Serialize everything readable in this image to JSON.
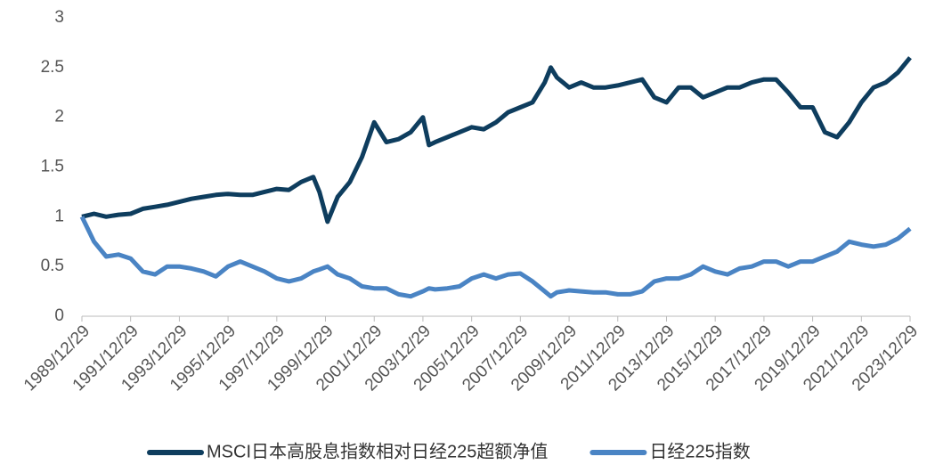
{
  "chart_data": {
    "type": "line",
    "x": [
      "1989/12/29",
      "1990/06/29",
      "1990/12/29",
      "1991/06/29",
      "1991/12/29",
      "1992/06/29",
      "1992/12/29",
      "1993/06/29",
      "1993/12/29",
      "1994/06/29",
      "1994/12/29",
      "1995/06/29",
      "1995/12/29",
      "1996/06/29",
      "1996/12/29",
      "1997/06/29",
      "1997/12/29",
      "1998/06/29",
      "1998/12/29",
      "1999/06/29",
      "1999/09/29",
      "2000/01/29",
      "2000/06/29",
      "2000/12/29",
      "2001/06/29",
      "2001/12/29",
      "2002/06/29",
      "2002/12/29",
      "2003/06/29",
      "2003/12/29",
      "2004/03/29",
      "2004/06/29",
      "2004/12/29",
      "2005/06/29",
      "2005/12/29",
      "2006/06/29",
      "2006/12/29",
      "2007/06/29",
      "2007/12/29",
      "2008/06/29",
      "2008/12/29",
      "2009/03/29",
      "2009/06/29",
      "2009/12/29",
      "2010/06/29",
      "2010/12/29",
      "2011/06/29",
      "2011/12/29",
      "2012/06/29",
      "2012/12/29",
      "2013/06/29",
      "2013/12/29",
      "2014/06/29",
      "2014/12/29",
      "2015/06/29",
      "2015/12/29",
      "2016/06/29",
      "2016/12/29",
      "2017/06/29",
      "2017/12/29",
      "2018/06/29",
      "2018/12/29",
      "2019/06/29",
      "2019/12/29",
      "2020/06/29",
      "2020/12/29",
      "2021/06/29",
      "2021/12/29",
      "2022/06/29",
      "2022/12/29",
      "2023/06/29",
      "2023/12/29"
    ],
    "series": [
      {
        "name": "MSCI日本高股息指数相对日经225超额净值",
        "color": "#0e3d5e",
        "values": [
          1.0,
          1.03,
          1.0,
          1.02,
          1.03,
          1.08,
          1.1,
          1.12,
          1.15,
          1.18,
          1.2,
          1.22,
          1.23,
          1.22,
          1.22,
          1.25,
          1.28,
          1.27,
          1.35,
          1.4,
          1.25,
          0.95,
          1.2,
          1.35,
          1.6,
          1.95,
          1.75,
          1.78,
          1.85,
          2.0,
          1.72,
          1.75,
          1.8,
          1.85,
          1.9,
          1.88,
          1.95,
          2.05,
          2.1,
          2.15,
          2.35,
          2.5,
          2.4,
          2.3,
          2.35,
          2.3,
          2.3,
          2.32,
          2.35,
          2.38,
          2.2,
          2.15,
          2.3,
          2.3,
          2.2,
          2.25,
          2.3,
          2.3,
          2.35,
          2.38,
          2.38,
          2.25,
          2.1,
          2.1,
          1.85,
          1.8,
          1.95,
          2.15,
          2.3,
          2.35,
          2.45,
          2.6
        ]
      },
      {
        "name": "日经225指数",
        "color": "#4a84c4",
        "values": [
          1.0,
          0.75,
          0.6,
          0.62,
          0.58,
          0.45,
          0.42,
          0.5,
          0.5,
          0.48,
          0.45,
          0.4,
          0.5,
          0.55,
          0.5,
          0.45,
          0.38,
          0.35,
          0.38,
          0.45,
          0.47,
          0.5,
          0.42,
          0.38,
          0.3,
          0.28,
          0.28,
          0.22,
          0.2,
          0.25,
          0.28,
          0.27,
          0.28,
          0.3,
          0.38,
          0.42,
          0.38,
          0.42,
          0.43,
          0.35,
          0.25,
          0.2,
          0.24,
          0.26,
          0.25,
          0.24,
          0.24,
          0.22,
          0.22,
          0.25,
          0.35,
          0.38,
          0.38,
          0.42,
          0.5,
          0.45,
          0.42,
          0.48,
          0.5,
          0.55,
          0.55,
          0.5,
          0.55,
          0.55,
          0.6,
          0.65,
          0.75,
          0.72,
          0.7,
          0.72,
          0.78,
          0.88
        ]
      }
    ],
    "xlim": [
      "1989/12/29",
      "2023/12/29"
    ],
    "xticks": [
      "1989/12/29",
      "1991/12/29",
      "1993/12/29",
      "1995/12/29",
      "1997/12/29",
      "1999/12/29",
      "2001/12/29",
      "2003/12/29",
      "2005/12/29",
      "2007/12/29",
      "2009/12/29",
      "2011/12/29",
      "2013/12/29",
      "2015/12/29",
      "2017/12/29",
      "2019/12/29",
      "2021/12/29",
      "2023/12/29"
    ],
    "ylim": [
      0,
      3
    ],
    "yticks": [
      0,
      0.5,
      1,
      1.5,
      2,
      2.5,
      3
    ],
    "legend": "bottom"
  }
}
